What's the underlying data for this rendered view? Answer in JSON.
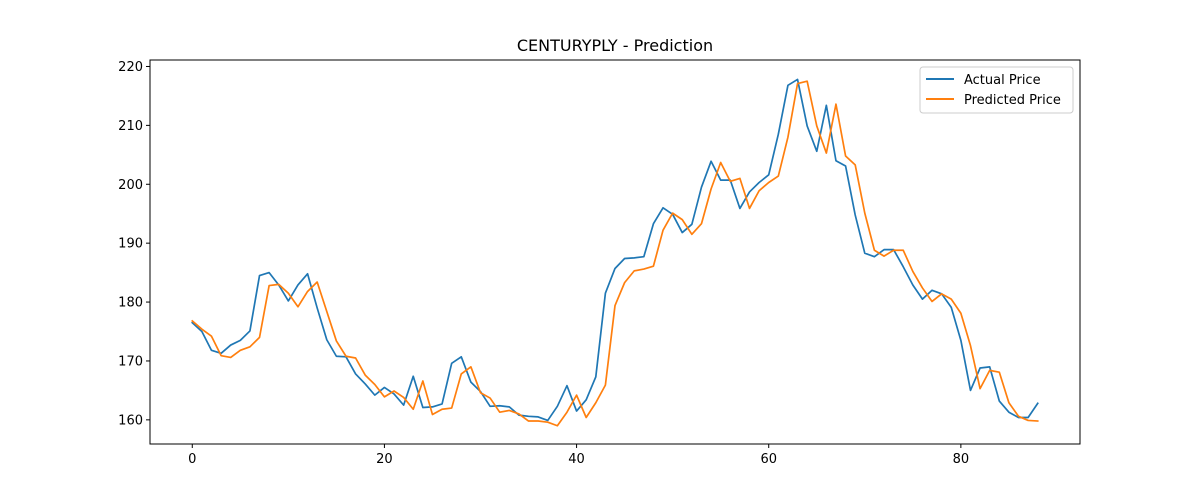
{
  "chart_data": {
    "type": "line",
    "title": "CENTURYPLY - Prediction",
    "xlabel": "",
    "ylabel": "",
    "xlim": [
      -4.4,
      92.4
    ],
    "ylim": [
      155.9,
      221.1
    ],
    "x_ticks": [
      0,
      20,
      40,
      60,
      80
    ],
    "y_ticks": [
      160,
      170,
      180,
      190,
      200,
      210,
      220
    ],
    "grid": false,
    "legend": "top-right",
    "series": [
      {
        "name": "Actual Price",
        "color": "#1f77b4",
        "values": [
          176.5,
          175.0,
          171.8,
          171.3,
          172.7,
          173.5,
          175.1,
          184.5,
          185.0,
          182.9,
          180.2,
          182.9,
          184.8,
          179.0,
          173.6,
          170.8,
          170.7,
          167.8,
          166.1,
          164.2,
          165.5,
          164.4,
          162.5,
          167.4,
          162.1,
          162.2,
          162.7,
          169.6,
          170.7,
          166.4,
          164.8,
          162.3,
          162.4,
          162.2,
          160.8,
          160.6,
          160.5,
          159.9,
          162.3,
          165.8,
          161.5,
          163.4,
          167.3,
          181.5,
          185.7,
          187.4,
          187.5,
          187.7,
          193.3,
          196.0,
          194.9,
          191.8,
          193.2,
          199.5,
          203.9,
          200.7,
          200.7,
          195.9,
          198.7,
          200.3,
          201.6,
          208.5,
          216.8,
          217.8,
          209.9,
          205.6,
          213.4,
          204.0,
          203.1,
          194.8,
          188.3,
          187.7,
          188.9,
          188.9,
          186.0,
          182.9,
          180.5,
          182.0,
          181.4,
          179.1,
          173.5,
          165.0,
          168.8,
          169.0,
          163.2,
          161.3,
          160.4,
          160.4,
          162.8
        ]
      },
      {
        "name": "Predicted Price",
        "color": "#ff7f0e",
        "values": [
          176.8,
          175.4,
          174.2,
          170.9,
          170.6,
          171.8,
          172.4,
          174.0,
          182.8,
          183.0,
          181.5,
          179.2,
          181.8,
          183.4,
          178.4,
          173.4,
          170.8,
          170.5,
          167.6,
          166.0,
          163.9,
          164.9,
          163.8,
          161.8,
          166.6,
          160.9,
          161.8,
          162.0,
          167.8,
          169.0,
          164.6,
          163.7,
          161.3,
          161.6,
          161.0,
          159.8,
          159.8,
          159.6,
          159.0,
          161.3,
          164.2,
          160.4,
          162.9,
          165.9,
          179.4,
          183.3,
          185.3,
          185.6,
          186.1,
          192.2,
          195.1,
          194.0,
          191.5,
          193.3,
          199.2,
          203.7,
          200.5,
          201.0,
          195.9,
          198.9,
          200.3,
          201.4,
          208.0,
          217.1,
          217.5,
          209.9,
          205.3,
          213.6,
          204.8,
          203.3,
          195.1,
          188.8,
          187.8,
          188.8,
          188.8,
          185.2,
          182.4,
          180.1,
          181.4,
          180.5,
          178.1,
          172.6,
          165.3,
          168.4,
          168.1,
          162.9,
          160.6,
          159.9,
          159.8
        ]
      }
    ]
  }
}
